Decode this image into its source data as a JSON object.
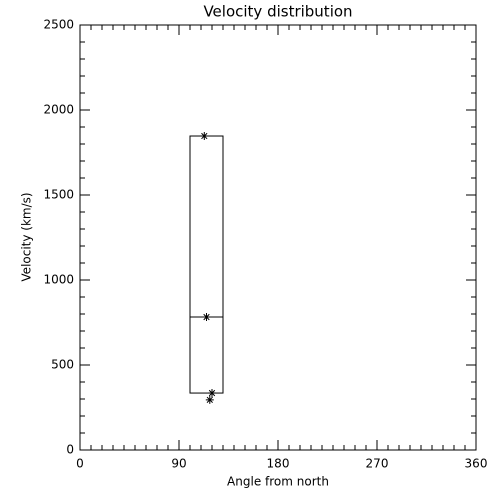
{
  "chart_data": {
    "type": "box",
    "title": "Velocity distribution",
    "x_label": "Angle from north",
    "y_label": "Velocity (km/s)",
    "boxes": [
      {
        "x": [
          100,
          130
        ],
        "low": 335,
        "median": 782,
        "high": 1847
      }
    ],
    "points": {
      "x": [
        113,
        115,
        120,
        118
      ],
      "y": [
        1847,
        782,
        335,
        295
      ]
    },
    "xlim": [
      0,
      360
    ],
    "xticks": [
      0,
      90,
      180,
      270,
      360
    ],
    "xminor": 9,
    "ylim": [
      0,
      2500
    ],
    "yticks": [
      0,
      500,
      1000,
      1500,
      2000,
      2500
    ],
    "yminor": 5,
    "color": "#000000"
  }
}
